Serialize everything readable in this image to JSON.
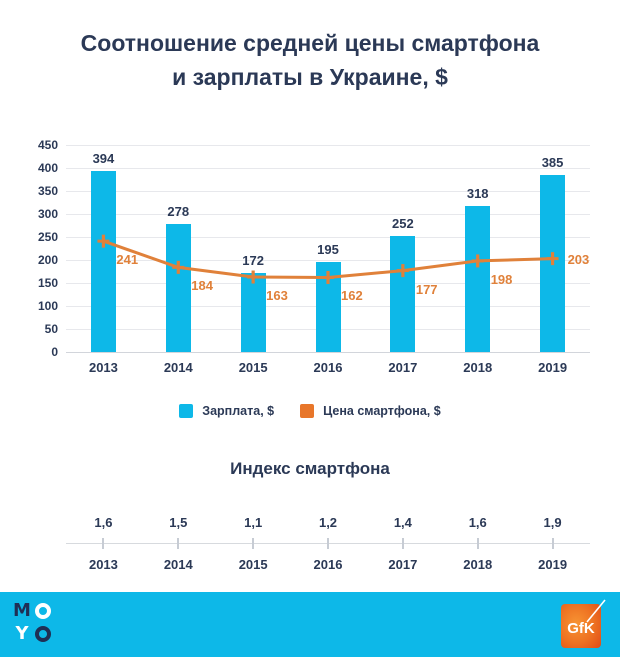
{
  "title": {
    "line1": "Соотношение средней цены смартфона",
    "line2": "и зарплаты в Украине, $"
  },
  "chart_data": [
    {
      "type": "combo",
      "title": "Соотношение средней цены смартфона и зарплаты в Украине, $",
      "categories": [
        "2013",
        "2014",
        "2015",
        "2016",
        "2017",
        "2018",
        "2019"
      ],
      "series": [
        {
          "name": "Зарплата, $",
          "type": "bar",
          "color": "#0db8e8",
          "values": [
            394,
            278,
            172,
            195,
            252,
            318,
            385
          ]
        },
        {
          "name": "Цена смартфона, $",
          "type": "line",
          "color": "#e0813a",
          "values": [
            241,
            184,
            163,
            162,
            177,
            198,
            203
          ]
        }
      ],
      "ylim": [
        0,
        450
      ],
      "ytick_step": 50,
      "grid": true,
      "legend_position": "bottom"
    },
    {
      "type": "line",
      "title": "Индекс смартфона",
      "categories": [
        "2013",
        "2014",
        "2015",
        "2016",
        "2017",
        "2018",
        "2019"
      ],
      "values": [
        1.6,
        1.5,
        1.1,
        1.2,
        1.4,
        1.6,
        1.9
      ],
      "values_display": [
        "1,6",
        "1,5",
        "1,1",
        "1,2",
        "1,4",
        "1,6",
        "1,9"
      ],
      "note": "timeline axis with values above ticks"
    }
  ],
  "legend": {
    "items": [
      {
        "label": "Зарплата, $",
        "color": "#0db8e8"
      },
      {
        "label": "Цена смартфона, $",
        "color": "#e8762a"
      }
    ]
  },
  "index_section": {
    "title": "Индекс смартфона"
  },
  "footer": {
    "bg_color": "#0db8e8",
    "moyo": {
      "letters": [
        "M",
        "O",
        "Y",
        "O"
      ]
    },
    "gfk": {
      "label": "GfK",
      "box_color": "#ee7222"
    }
  },
  "colors": {
    "navy_text": "#2b3956",
    "bar_cyan": "#0db8e8",
    "line_orange": "#e0813a",
    "gridline": "#e7e8ec"
  }
}
